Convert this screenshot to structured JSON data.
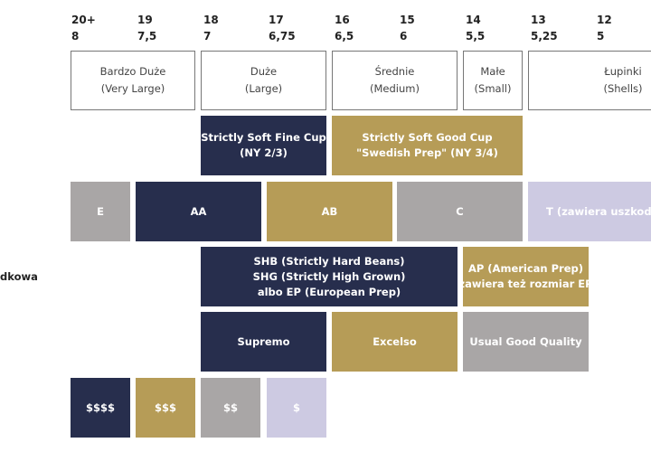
{
  "screens": [
    {
      "top": "20+",
      "bottom": "8"
    },
    {
      "top": "19",
      "bottom": "7,5"
    },
    {
      "top": "18",
      "bottom": "7"
    },
    {
      "top": "17",
      "bottom": "6,75"
    },
    {
      "top": "16",
      "bottom": "6,5"
    },
    {
      "top": "15",
      "bottom": "6"
    },
    {
      "top": "14",
      "bottom": "5,5"
    },
    {
      "top": "13",
      "bottom": "5,25"
    },
    {
      "top": "12",
      "bottom": "5"
    }
  ],
  "sizes": [
    {
      "line1": "Bardzo Duże",
      "line2": "(Very Large)"
    },
    {
      "line1": "Duże",
      "line2": "(Large)"
    },
    {
      "line1": "Średnie",
      "line2": "(Medium)"
    },
    {
      "line1": "Małe",
      "line2": "(Small)"
    },
    {
      "line1": "Łupinki",
      "line2": "(Shells)"
    }
  ],
  "brazil": [
    {
      "line1": "Strictly Soft Fine Cup",
      "line2": "(NY 2/3)"
    },
    {
      "line1": "Strictly Soft Good Cup",
      "line2": "\"Swedish Prep\" (NY 3/4)"
    }
  ],
  "african": [
    "E",
    "AA",
    "AB",
    "C",
    "T (zawiera uszkodzone)"
  ],
  "side_label": "dkowa",
  "central": [
    {
      "line1": "SHB (Strictly Hard Beans)",
      "line2": "SHG (Strictly High Grown)",
      "line3": "albo EP (European Prep)"
    },
    {
      "line1": "AP (American Prep)",
      "line2": "zawiera też rozmiar EP"
    }
  ],
  "colombia": [
    "Supremo",
    "Excelso",
    "Usual Good Quality"
  ],
  "prices": [
    "$$$$",
    "$$$",
    "$$",
    "$"
  ],
  "colors": {
    "navy": "#272e4d",
    "gold": "#b69c57",
    "gray": "#a9a6a6",
    "lavender": "#cdcae2"
  }
}
